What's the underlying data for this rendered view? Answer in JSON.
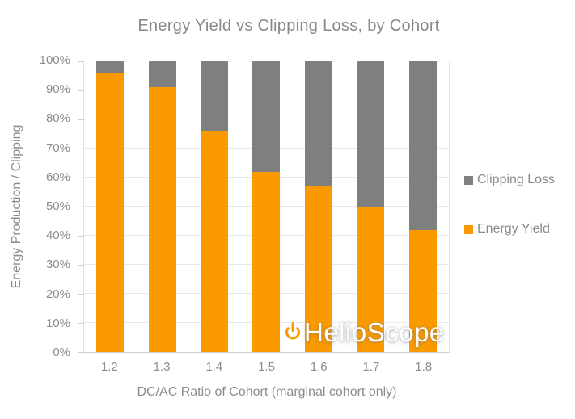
{
  "chart_data": {
    "type": "bar",
    "stacked": true,
    "title": "Energy Yield vs Clipping Loss, by Cohort",
    "xlabel": "DC/AC Ratio of Cohort (marginal cohort only)",
    "ylabel": "Energy Production / Clipping",
    "categories": [
      "1.2",
      "1.3",
      "1.4",
      "1.5",
      "1.6",
      "1.7",
      "1.8"
    ],
    "series": [
      {
        "name": "Energy Yield",
        "color": "#FB9A00",
        "values": [
          96,
          91,
          76,
          62,
          57,
          50,
          42
        ]
      },
      {
        "name": "Clipping Loss",
        "color": "#7F7F7F",
        "values": [
          4,
          9,
          24,
          38,
          43,
          50,
          58
        ]
      }
    ],
    "ylim": [
      0,
      100
    ],
    "ytick_step": 10,
    "ytick_labels": [
      "0%",
      "10%",
      "20%",
      "30%",
      "40%",
      "50%",
      "60%",
      "70%",
      "80%",
      "90%",
      "100%"
    ],
    "grid": true,
    "legend_position": "right"
  },
  "legend": {
    "items": [
      {
        "label": "Clipping Loss",
        "color": "#7F7F7F"
      },
      {
        "label": "Energy Yield",
        "color": "#FB9A00"
      }
    ]
  },
  "watermark": {
    "text": "HelioScope",
    "icon": "power-icon",
    "icon_color": "#FB9A00"
  },
  "colors": {
    "background": "#FFFFFF",
    "energy_yield": "#FB9A00",
    "clipping_loss": "#7F7F7F",
    "text": "#8A8A8A",
    "gridline": "#E9E9E9"
  }
}
